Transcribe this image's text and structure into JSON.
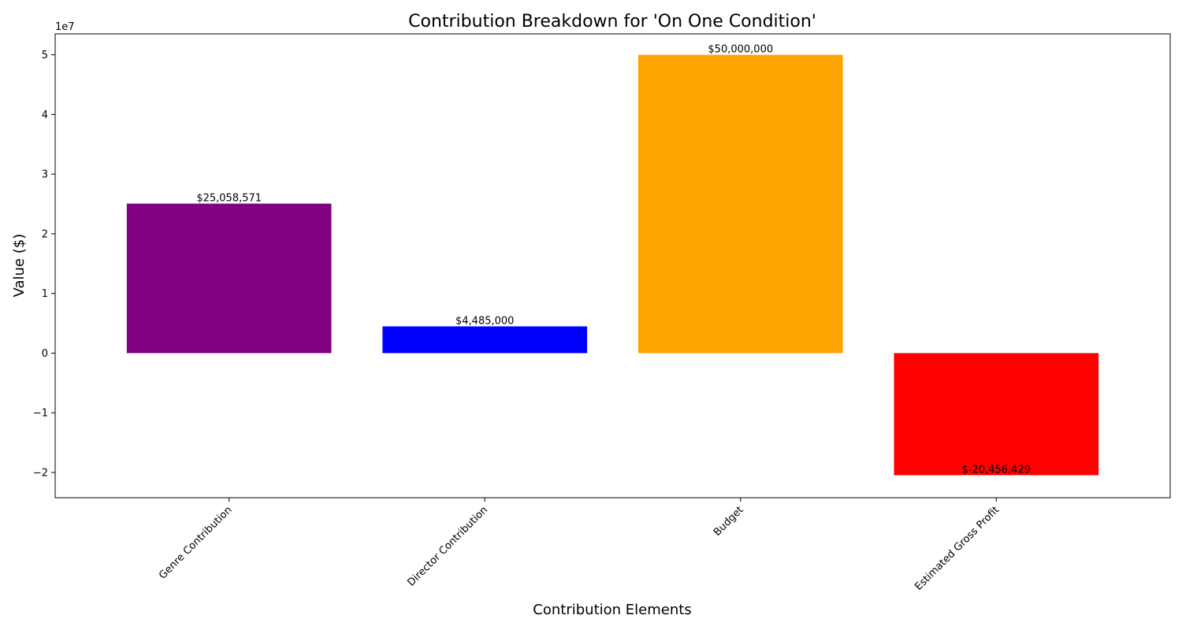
{
  "chart_data": {
    "type": "bar",
    "title": "Contribution Breakdown for 'On One Condition'",
    "xlabel": "Contribution Elements",
    "ylabel": "Value ($)",
    "y_offset_label": "1e7",
    "categories": [
      "Genre Contribution",
      "Director Contribution",
      "Budget",
      "Estimated Gross Profit"
    ],
    "values": [
      25058571,
      4485000,
      50000000,
      -20456429
    ],
    "data_labels": [
      "$25,058,571",
      "$4,485,000",
      "$50,000,000",
      "$-20,456,429"
    ],
    "colors": [
      "#800080",
      "#0000ff",
      "#ffa500",
      "#ff0000"
    ],
    "ylim": [
      -24232000,
      53512000
    ],
    "yticks": [
      -20000000,
      -10000000,
      0,
      10000000,
      20000000,
      30000000,
      40000000,
      50000000
    ],
    "ytick_labels": [
      "−2",
      "−1",
      "0",
      "1",
      "2",
      "3",
      "4",
      "5"
    ],
    "grid": false,
    "legend": "none"
  }
}
